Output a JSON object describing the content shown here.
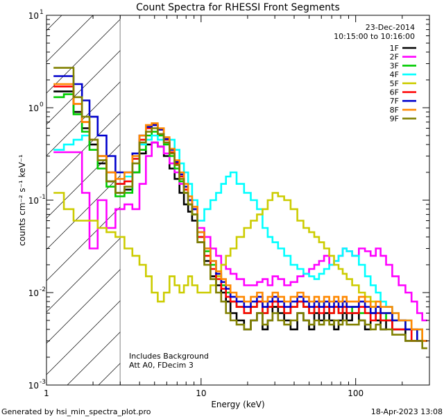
{
  "chart_data": {
    "type": "line",
    "title": "Count Spectra for RHESSI Front Segments",
    "xlabel": "Energy (keV)",
    "ylabel": "counts cm⁻² s⁻¹ keV⁻¹",
    "xscale": "log",
    "yscale": "log",
    "xlim": [
      1,
      300
    ],
    "ylim": [
      0.001,
      10
    ],
    "x_tick_labels": [
      {
        "value": 1,
        "label": "1"
      },
      {
        "value": 10,
        "label": "10"
      },
      {
        "value": 100,
        "label": "100"
      }
    ],
    "y_tick_labels": [
      {
        "value": 0.001,
        "base": "10",
        "exp": "-3"
      },
      {
        "value": 0.01,
        "base": "10",
        "exp": "-2"
      },
      {
        "value": 0.1,
        "base": "10",
        "exp": "-1"
      },
      {
        "value": 1,
        "base": "10",
        "exp": "0"
      },
      {
        "value": 10,
        "base": "10",
        "exp": "1"
      }
    ],
    "legend_placement": "top-right",
    "date": "23-Dec-2014",
    "time_range": "10:15:00 to 10:16:00",
    "excluded_region": {
      "x_max": 3
    },
    "notes": [
      "Includes Background",
      "Att A0, FDecim 3"
    ],
    "footer_left": "Generated by hsi_min_spectra_plot.pro",
    "footer_right": "18-Apr-2023 13:08",
    "energy_bins": [
      1.2,
      1.4,
      1.6,
      1.8,
      2.0,
      2.3,
      2.6,
      3.0,
      3.4,
      3.8,
      4.2,
      4.6,
      5.0,
      5.5,
      6.0,
      6.5,
      7.0,
      7.5,
      8.0,
      8.5,
      9.0,
      10,
      11,
      12,
      13,
      14,
      15,
      16,
      18,
      20,
      22,
      24,
      26,
      28,
      30,
      33,
      36,
      40,
      44,
      48,
      52,
      56,
      60,
      65,
      70,
      75,
      80,
      85,
      90,
      100,
      110,
      120,
      130,
      140,
      150,
      165,
      180,
      200,
      220,
      240,
      260,
      280
    ],
    "series": [
      {
        "name": "1F",
        "color": "#000000",
        "values": [
          1.5,
          1.5,
          0.9,
          0.6,
          0.4,
          0.25,
          0.16,
          0.12,
          0.13,
          0.2,
          0.32,
          0.4,
          0.42,
          0.38,
          0.3,
          0.22,
          0.17,
          0.12,
          0.09,
          0.075,
          0.06,
          0.035,
          0.022,
          0.015,
          0.012,
          0.01,
          0.008,
          0.006,
          0.005,
          0.004,
          0.005,
          0.006,
          0.004,
          0.005,
          0.007,
          0.006,
          0.005,
          0.004,
          0.006,
          0.005,
          0.004,
          0.006,
          0.005,
          0.006,
          0.005,
          0.004,
          0.005,
          0.006,
          0.005,
          0.006,
          0.005,
          0.004,
          0.006,
          0.005,
          0.004,
          0.005,
          0.004,
          0.004,
          0.003,
          0.003,
          0.003,
          0.003
        ]
      },
      {
        "name": "2F",
        "color": "#ff00ff",
        "values": [
          0.33,
          0.33,
          0.33,
          0.12,
          0.03,
          0.1,
          0.05,
          0.08,
          0.09,
          0.08,
          0.15,
          0.3,
          0.42,
          0.38,
          0.32,
          0.25,
          0.2,
          0.15,
          0.12,
          0.1,
          0.08,
          0.05,
          0.04,
          0.03,
          0.025,
          0.02,
          0.018,
          0.016,
          0.014,
          0.012,
          0.012,
          0.013,
          0.014,
          0.012,
          0.015,
          0.014,
          0.012,
          0.013,
          0.015,
          0.016,
          0.018,
          0.02,
          0.022,
          0.025,
          0.02,
          0.022,
          0.025,
          0.03,
          0.028,
          0.025,
          0.03,
          0.028,
          0.025,
          0.03,
          0.025,
          0.02,
          0.015,
          0.012,
          0.01,
          0.008,
          0.006,
          0.005
        ]
      },
      {
        "name": "3F",
        "color": "#00cc00",
        "values": [
          1.3,
          1.4,
          0.85,
          0.55,
          0.35,
          0.22,
          0.14,
          0.11,
          0.12,
          0.2,
          0.35,
          0.5,
          0.55,
          0.5,
          0.4,
          0.3,
          0.22,
          0.16,
          0.12,
          0.09,
          0.07,
          0.04,
          0.028,
          0.02,
          0.015,
          0.012,
          0.01,
          0.008,
          0.007,
          0.006,
          0.007,
          0.008,
          0.006,
          0.007,
          0.008,
          0.007,
          0.006,
          0.007,
          0.008,
          0.007,
          0.006,
          0.007,
          0.008,
          0.007,
          0.006,
          0.007,
          0.006,
          0.007,
          0.006,
          0.007,
          0.006,
          0.006,
          0.007,
          0.006,
          0.005,
          0.006,
          0.005,
          0.005,
          0.004,
          0.004,
          0.004,
          0.003
        ]
      },
      {
        "name": "4F",
        "color": "#00ffff",
        "values": [
          0.35,
          0.4,
          0.45,
          0.5,
          0.45,
          0.3,
          0.2,
          0.15,
          0.18,
          0.28,
          0.4,
          0.45,
          0.5,
          0.45,
          0.42,
          0.45,
          0.35,
          0.25,
          0.2,
          0.15,
          0.1,
          0.06,
          0.08,
          0.1,
          0.12,
          0.15,
          0.18,
          0.2,
          0.15,
          0.12,
          0.1,
          0.08,
          0.05,
          0.04,
          0.035,
          0.03,
          0.025,
          0.02,
          0.018,
          0.016,
          0.015,
          0.014,
          0.016,
          0.018,
          0.02,
          0.022,
          0.025,
          0.03,
          0.028,
          0.025,
          0.02,
          0.015,
          0.012,
          0.01,
          0.008,
          0.007,
          0.006,
          0.005,
          0.005,
          0.004,
          0.004,
          0.003
        ]
      },
      {
        "name": "5F",
        "color": "#cccc00",
        "values": [
          0.12,
          0.08,
          0.06,
          0.06,
          0.06,
          0.05,
          0.045,
          0.04,
          0.03,
          0.025,
          0.02,
          0.015,
          0.01,
          0.008,
          0.01,
          0.015,
          0.012,
          0.01,
          0.012,
          0.015,
          0.012,
          0.01,
          0.01,
          0.012,
          0.015,
          0.02,
          0.025,
          0.03,
          0.04,
          0.05,
          0.06,
          0.07,
          0.08,
          0.1,
          0.12,
          0.11,
          0.1,
          0.08,
          0.06,
          0.05,
          0.045,
          0.04,
          0.035,
          0.03,
          0.025,
          0.02,
          0.018,
          0.016,
          0.014,
          0.012,
          0.01,
          0.009,
          0.008,
          0.007,
          0.006,
          0.006,
          0.005,
          0.005,
          0.004,
          0.004,
          0.003,
          0.003
        ]
      },
      {
        "name": "6F",
        "color": "#ff0000",
        "values": [
          1.7,
          1.7,
          1.1,
          0.7,
          0.45,
          0.3,
          0.2,
          0.15,
          0.16,
          0.28,
          0.45,
          0.6,
          0.65,
          0.58,
          0.45,
          0.33,
          0.25,
          0.18,
          0.13,
          0.1,
          0.08,
          0.04,
          0.025,
          0.018,
          0.014,
          0.011,
          0.009,
          0.008,
          0.007,
          0.006,
          0.007,
          0.008,
          0.006,
          0.007,
          0.008,
          0.007,
          0.006,
          0.007,
          0.008,
          0.007,
          0.006,
          0.007,
          0.006,
          0.007,
          0.006,
          0.007,
          0.006,
          0.007,
          0.006,
          0.006,
          0.007,
          0.006,
          0.005,
          0.006,
          0.005,
          0.005,
          0.004,
          0.004,
          0.004,
          0.003,
          0.003,
          0.003
        ]
      },
      {
        "name": "7F",
        "color": "#0000cc",
        "values": [
          2.2,
          2.2,
          1.8,
          1.2,
          0.8,
          0.5,
          0.3,
          0.2,
          0.2,
          0.32,
          0.5,
          0.62,
          0.65,
          0.58,
          0.46,
          0.35,
          0.26,
          0.19,
          0.14,
          0.1,
          0.08,
          0.045,
          0.03,
          0.022,
          0.016,
          0.013,
          0.011,
          0.009,
          0.008,
          0.007,
          0.008,
          0.009,
          0.007,
          0.008,
          0.009,
          0.008,
          0.007,
          0.008,
          0.009,
          0.008,
          0.007,
          0.008,
          0.007,
          0.008,
          0.007,
          0.008,
          0.007,
          0.008,
          0.007,
          0.007,
          0.008,
          0.007,
          0.006,
          0.007,
          0.006,
          0.006,
          0.005,
          0.005,
          0.004,
          0.004,
          0.003,
          0.003
        ]
      },
      {
        "name": "8F",
        "color": "#ff8800",
        "values": [
          1.8,
          1.8,
          1.1,
          0.7,
          0.45,
          0.3,
          0.2,
          0.17,
          0.2,
          0.3,
          0.5,
          0.65,
          0.68,
          0.6,
          0.48,
          0.36,
          0.27,
          0.2,
          0.15,
          0.11,
          0.085,
          0.045,
          0.03,
          0.022,
          0.017,
          0.014,
          0.012,
          0.01,
          0.009,
          0.008,
          0.009,
          0.01,
          0.008,
          0.009,
          0.01,
          0.009,
          0.008,
          0.009,
          0.01,
          0.009,
          0.008,
          0.009,
          0.008,
          0.009,
          0.008,
          0.009,
          0.008,
          0.009,
          0.008,
          0.008,
          0.009,
          0.008,
          0.007,
          0.008,
          0.007,
          0.007,
          0.006,
          0.005,
          0.005,
          0.004,
          0.004,
          0.003
        ]
      },
      {
        "name": "9F",
        "color": "#808000",
        "values": [
          2.7,
          2.7,
          1.3,
          0.8,
          0.45,
          0.27,
          0.16,
          0.12,
          0.14,
          0.25,
          0.42,
          0.55,
          0.6,
          0.52,
          0.42,
          0.32,
          0.24,
          0.17,
          0.12,
          0.09,
          0.07,
          0.035,
          0.02,
          0.014,
          0.01,
          0.008,
          0.006,
          0.005,
          0.0045,
          0.004,
          0.005,
          0.006,
          0.0045,
          0.005,
          0.006,
          0.005,
          0.0045,
          0.005,
          0.006,
          0.005,
          0.0045,
          0.005,
          0.0045,
          0.005,
          0.0045,
          0.005,
          0.0045,
          0.005,
          0.0045,
          0.0045,
          0.005,
          0.0045,
          0.004,
          0.0045,
          0.004,
          0.004,
          0.0035,
          0.0035,
          0.003,
          0.003,
          0.003,
          0.0025
        ]
      }
    ]
  }
}
